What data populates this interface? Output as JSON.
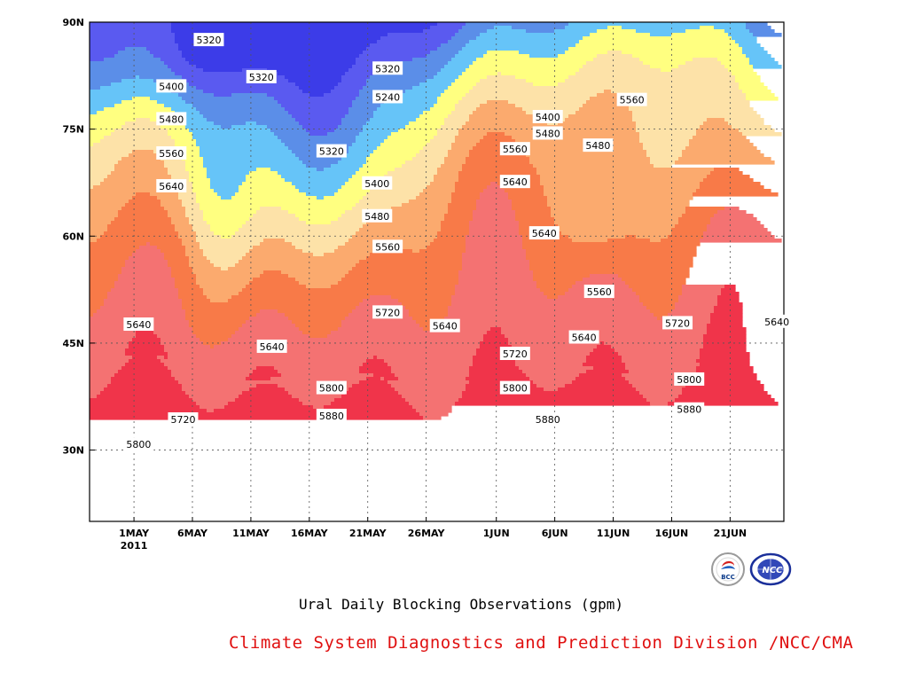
{
  "title": "Ural Daily Blocking Observations (gpm)",
  "footer": "Climate System Diagnostics and Prediction Division /NCC/CMA",
  "logos": [
    {
      "name": "bcc-logo",
      "text": "BCC"
    },
    {
      "name": "ncc-logo",
      "text": "NCC"
    }
  ],
  "chart_data": {
    "type": "contour",
    "title": "Ural Daily Blocking Observations (gpm)",
    "units": "gpm",
    "grid": true,
    "x_ticks": [
      {
        "label": "1MAY",
        "sub": "2011",
        "day": 0
      },
      {
        "label": "6MAY",
        "day": 5
      },
      {
        "label": "11MAY",
        "day": 10
      },
      {
        "label": "16MAY",
        "day": 15
      },
      {
        "label": "21MAY",
        "day": 20
      },
      {
        "label": "26MAY",
        "day": 25
      },
      {
        "label": "1JUN",
        "day": 31
      },
      {
        "label": "6JUN",
        "day": 36
      },
      {
        "label": "11JUN",
        "day": 41
      },
      {
        "label": "16JUN",
        "day": 46
      },
      {
        "label": "21JUN",
        "day": 51
      }
    ],
    "x_range_days": [
      -3.8,
      55.6
    ],
    "y_ticks": [
      {
        "label": "30N",
        "lat": 30
      },
      {
        "label": "45N",
        "lat": 45
      },
      {
        "label": "60N",
        "lat": 60
      },
      {
        "label": "75N",
        "lat": 75
      },
      {
        "label": "90N",
        "lat": 90
      }
    ],
    "y_range_lat": [
      20,
      90
    ],
    "levels": [
      5240,
      5320,
      5400,
      5480,
      5560,
      5640,
      5720,
      5800,
      5880
    ],
    "fill_colors": [
      "#1010dd",
      "#3c3ce8",
      "#5a5af0",
      "#5b8ee8",
      "#66c4f8",
      "#ffff80",
      "#fde2a8",
      "#fbaa6e",
      "#f87a48",
      "#f47272",
      "#f0344a"
    ],
    "contour_labels": [
      {
        "v": "5320",
        "day": 6.4,
        "lat": 87.5
      },
      {
        "v": "5320",
        "day": 21.7,
        "lat": 83.5
      },
      {
        "v": "5320",
        "day": 10.9,
        "lat": 82.3
      },
      {
        "v": "5240",
        "day": 21.7,
        "lat": 79.5
      },
      {
        "v": "5400",
        "day": 3.2,
        "lat": 81.0
      },
      {
        "v": "5480",
        "day": 3.2,
        "lat": 76.4
      },
      {
        "v": "5560",
        "day": 3.2,
        "lat": 71.6
      },
      {
        "v": "5640",
        "day": 3.2,
        "lat": 67.0
      },
      {
        "v": "5320",
        "day": 16.9,
        "lat": 71.9
      },
      {
        "v": "5400",
        "day": 20.8,
        "lat": 67.4
      },
      {
        "v": "5480",
        "day": 20.8,
        "lat": 62.8
      },
      {
        "v": "5560",
        "day": 21.7,
        "lat": 58.5
      },
      {
        "v": "5640",
        "day": 0.4,
        "lat": 47.6
      },
      {
        "v": "5640",
        "day": 11.8,
        "lat": 44.5
      },
      {
        "v": "5720",
        "day": 21.7,
        "lat": 49.3
      },
      {
        "v": "5640",
        "day": 26.6,
        "lat": 47.4
      },
      {
        "v": "5720",
        "day": 4.2,
        "lat": 34.3
      },
      {
        "v": "5800",
        "day": 0.4,
        "lat": 30.8
      },
      {
        "v": "5800",
        "day": 16.9,
        "lat": 38.7
      },
      {
        "v": "5880",
        "day": 16.9,
        "lat": 34.8
      },
      {
        "v": "5400",
        "day": 35.4,
        "lat": 76.7
      },
      {
        "v": "5480",
        "day": 35.4,
        "lat": 74.4
      },
      {
        "v": "5560",
        "day": 32.6,
        "lat": 72.2
      },
      {
        "v": "5640",
        "day": 32.6,
        "lat": 67.6
      },
      {
        "v": "5640",
        "day": 35.1,
        "lat": 60.4
      },
      {
        "v": "5560",
        "day": 42.6,
        "lat": 79.1
      },
      {
        "v": "5480",
        "day": 39.7,
        "lat": 72.7
      },
      {
        "v": "5560",
        "day": 39.8,
        "lat": 52.2
      },
      {
        "v": "5640",
        "day": 38.5,
        "lat": 45.8
      },
      {
        "v": "5720",
        "day": 46.5,
        "lat": 47.8
      },
      {
        "v": "5640",
        "day": 55.0,
        "lat": 48.0
      },
      {
        "v": "5720",
        "day": 32.6,
        "lat": 43.5
      },
      {
        "v": "5800",
        "day": 32.6,
        "lat": 38.7
      },
      {
        "v": "5880",
        "day": 35.4,
        "lat": 34.3
      },
      {
        "v": "5800",
        "day": 47.5,
        "lat": 39.9
      },
      {
        "v": "5880",
        "day": 47.5,
        "lat": 35.7
      }
    ]
  }
}
